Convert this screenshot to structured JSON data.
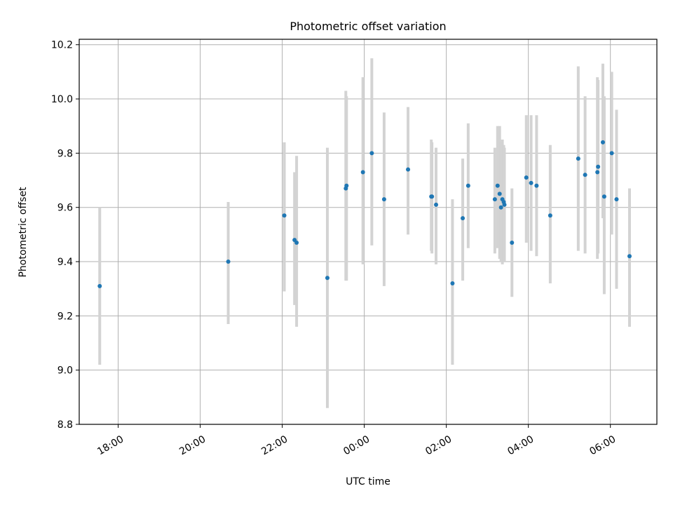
{
  "chart_data": {
    "type": "scatter",
    "title": "Photometric offset variation",
    "xlabel": "UTC time",
    "ylabel": "Photometric offset",
    "grid": true,
    "x_axis": {
      "kind": "time",
      "range": [
        "17:03",
        "07:08"
      ],
      "ticks": [
        "18:00",
        "20:00",
        "22:00",
        "00:00",
        "02:00",
        "04:00",
        "06:00"
      ]
    },
    "y_axis": {
      "range": [
        8.8,
        10.22
      ],
      "ticks": [
        "8.8",
        "9.0",
        "9.2",
        "9.4",
        "9.6",
        "9.8",
        "10.0",
        "10.2"
      ]
    },
    "colors": {
      "points": "#1f77b4",
      "error_bars": "#d3d3d3"
    },
    "series": [
      {
        "points": [
          {
            "t": "17:33",
            "y": 9.31,
            "lo": 9.02,
            "hi": 9.6
          },
          {
            "t": "20:41",
            "y": 9.4,
            "lo": 9.17,
            "hi": 9.62
          },
          {
            "t": "22:03",
            "y": 9.57,
            "lo": 9.29,
            "hi": 9.84
          },
          {
            "t": "22:18",
            "y": 9.48,
            "lo": 9.24,
            "hi": 9.73
          },
          {
            "t": "22:21",
            "y": 9.47,
            "lo": 9.16,
            "hi": 9.79
          },
          {
            "t": "23:06",
            "y": 9.34,
            "lo": 8.86,
            "hi": 9.82
          },
          {
            "t": "23:33",
            "y": 9.67,
            "lo": 9.33,
            "hi": 10.03
          },
          {
            "t": "23:34",
            "y": 9.68,
            "lo": 9.33,
            "hi": 10.01
          },
          {
            "t": "23:58",
            "y": 9.73,
            "lo": 9.39,
            "hi": 10.08
          },
          {
            "t": "00:11",
            "y": 9.8,
            "lo": 9.46,
            "hi": 10.15
          },
          {
            "t": "00:29",
            "y": 9.63,
            "lo": 9.31,
            "hi": 9.95
          },
          {
            "t": "01:04",
            "y": 9.74,
            "lo": 9.5,
            "hi": 9.97
          },
          {
            "t": "01:38",
            "y": 9.64,
            "lo": 9.44,
            "hi": 9.85
          },
          {
            "t": "01:39",
            "y": 9.64,
            "lo": 9.43,
            "hi": 9.84
          },
          {
            "t": "01:45",
            "y": 9.61,
            "lo": 9.39,
            "hi": 9.82
          },
          {
            "t": "02:09",
            "y": 9.32,
            "lo": 9.02,
            "hi": 9.63
          },
          {
            "t": "02:24",
            "y": 9.56,
            "lo": 9.33,
            "hi": 9.78
          },
          {
            "t": "02:32",
            "y": 9.68,
            "lo": 9.45,
            "hi": 9.91
          },
          {
            "t": "03:11",
            "y": 9.63,
            "lo": 9.43,
            "hi": 9.82
          },
          {
            "t": "03:15",
            "y": 9.68,
            "lo": 9.45,
            "hi": 9.9
          },
          {
            "t": "03:18",
            "y": 9.65,
            "lo": 9.41,
            "hi": 9.9
          },
          {
            "t": "03:20",
            "y": 9.6,
            "lo": 9.4,
            "hi": 9.84
          },
          {
            "t": "03:22",
            "y": 9.63,
            "lo": 9.39,
            "hi": 9.85
          },
          {
            "t": "03:24",
            "y": 9.62,
            "lo": 9.4,
            "hi": 9.83
          },
          {
            "t": "03:25",
            "y": 9.61,
            "lo": 9.4,
            "hi": 9.82
          },
          {
            "t": "03:36",
            "y": 9.47,
            "lo": 9.27,
            "hi": 9.67
          },
          {
            "t": "03:57",
            "y": 9.71,
            "lo": 9.47,
            "hi": 9.94
          },
          {
            "t": "04:04",
            "y": 9.69,
            "lo": 9.44,
            "hi": 9.94
          },
          {
            "t": "04:12",
            "y": 9.68,
            "lo": 9.42,
            "hi": 9.94
          },
          {
            "t": "04:32",
            "y": 9.57,
            "lo": 9.32,
            "hi": 9.83
          },
          {
            "t": "05:13",
            "y": 9.78,
            "lo": 9.44,
            "hi": 10.12
          },
          {
            "t": "05:23",
            "y": 9.72,
            "lo": 9.43,
            "hi": 10.01
          },
          {
            "t": "05:41",
            "y": 9.73,
            "lo": 9.41,
            "hi": 10.08
          },
          {
            "t": "05:42",
            "y": 9.75,
            "lo": 9.43,
            "hi": 10.07
          },
          {
            "t": "05:49",
            "y": 9.84,
            "lo": 9.56,
            "hi": 10.13
          },
          {
            "t": "05:51",
            "y": 9.64,
            "lo": 9.28,
            "hi": 10.01
          },
          {
            "t": "06:02",
            "y": 9.8,
            "lo": 9.5,
            "hi": 10.1
          },
          {
            "t": "06:09",
            "y": 9.63,
            "lo": 9.3,
            "hi": 9.96
          },
          {
            "t": "06:28",
            "y": 9.42,
            "lo": 9.16,
            "hi": 9.67
          }
        ]
      }
    ]
  }
}
